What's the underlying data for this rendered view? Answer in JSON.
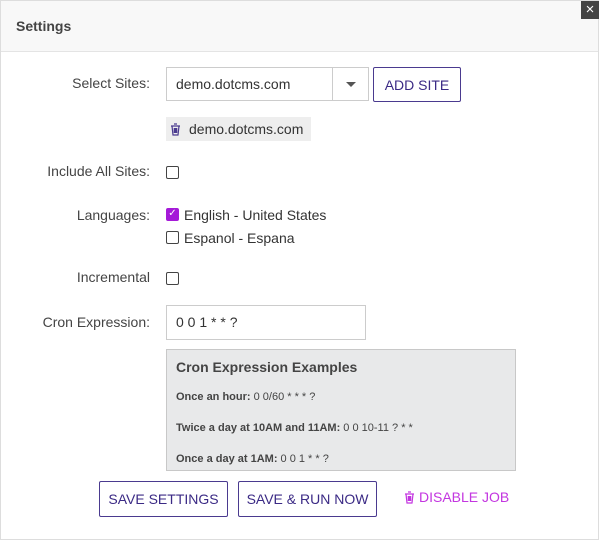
{
  "title": "Settings",
  "close_label": "×",
  "select_sites": {
    "label": "Select Sites:",
    "value": "demo.dotcms.com",
    "add_label": "ADD SITE",
    "selected": [
      "demo.dotcms.com"
    ]
  },
  "include_all": {
    "label": "Include All Sites:",
    "checked": false
  },
  "languages": {
    "label": "Languages:",
    "options": [
      {
        "label": "English - United States",
        "checked": true
      },
      {
        "label": "Espanol - Espana",
        "checked": false
      }
    ]
  },
  "incremental": {
    "label": "Incremental",
    "checked": false
  },
  "cron": {
    "label": "Cron Expression:",
    "value": "0 0 1 * * ?"
  },
  "examples": {
    "title": "Cron Expression Examples",
    "items": [
      {
        "k": "Once an hour:",
        "v": " 0 0/60 * * * ?"
      },
      {
        "k": "Twice a day at 10AM and 11AM:",
        "v": " 0 0 10-11 ? * *"
      },
      {
        "k": "Once a day at 1AM:",
        "v": " 0 0 1 * * ?"
      }
    ]
  },
  "actions": {
    "save": "SAVE SETTINGS",
    "save_run": "SAVE & RUN NOW",
    "disable": "DISABLE JOB"
  },
  "colors": {
    "accent": "#a51ad8",
    "primary": "#3b2a85"
  }
}
